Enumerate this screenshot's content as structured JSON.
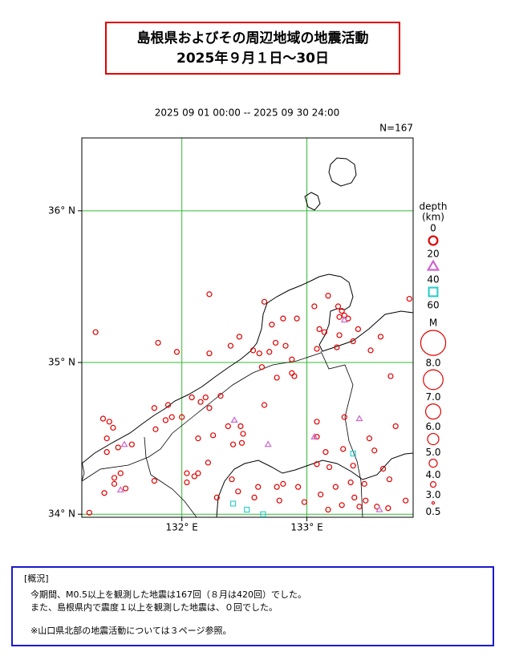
{
  "title": [
    "島根県およびその周辺地域の地震活動",
    "2025年９月１日～30日"
  ],
  "period": "2025 09 01 00:00 -- 2025 09 30 24:00",
  "count_label": "N=167",
  "map": {
    "xlim": [
      131.2,
      133.85
    ],
    "ylim": [
      33.98,
      36.48
    ],
    "xticks": [
      {
        "value": 132,
        "label": "132° E"
      },
      {
        "value": 133,
        "label": "133° E"
      }
    ],
    "yticks": [
      {
        "value": 34,
        "label": "34° N"
      },
      {
        "value": 35,
        "label": "35° N"
      },
      {
        "value": 36,
        "label": "36° N"
      }
    ],
    "grid_color": "#33bb33"
  },
  "legend": {
    "depth_title": [
      "depth",
      "(km)"
    ],
    "depth_ticks": [
      0,
      20,
      40,
      60
    ],
    "depth_colors": [
      "#e00000",
      "#cc66cc",
      "#33cccc"
    ],
    "magnitude_title": "M",
    "magnitude_ticks": [
      {
        "value": 8,
        "label": "8.0"
      },
      {
        "value": 7,
        "label": "7.0"
      },
      {
        "value": 6,
        "label": "6.0"
      },
      {
        "value": 5,
        "label": "5.0"
      },
      {
        "value": 4,
        "label": "4.0"
      },
      {
        "value": 3,
        "label": "3.0"
      },
      0.5
    ]
  },
  "events": [
    [
      131.31,
      35.2,
      10
    ],
    [
      132.22,
      35.45,
      10
    ],
    [
      131.81,
      35.13,
      10
    ],
    [
      131.96,
      35.07,
      10
    ],
    [
      132.22,
      35.06,
      10
    ],
    [
      132.39,
      35.11,
      10
    ],
    [
      132.46,
      35.17,
      10
    ],
    [
      132.66,
      35.4,
      10
    ],
    [
      132.72,
      35.25,
      10
    ],
    [
      132.81,
      35.29,
      10
    ],
    [
      132.92,
      35.29,
      10
    ],
    [
      133.06,
      35.37,
      10
    ],
    [
      133.17,
      35.44,
      10
    ],
    [
      133.25,
      35.37,
      10
    ],
    [
      133.28,
      35.34,
      10
    ],
    [
      133.3,
      35.31,
      10
    ],
    [
      133.33,
      35.29,
      10
    ],
    [
      133.26,
      35.3,
      10
    ],
    [
      133.1,
      35.22,
      10
    ],
    [
      133.14,
      35.2,
      10
    ],
    [
      133.26,
      35.18,
      10
    ],
    [
      133.41,
      35.22,
      10
    ],
    [
      133.37,
      35.14,
      10
    ],
    [
      133.51,
      35.08,
      10
    ],
    [
      133.08,
      35.09,
      10
    ],
    [
      133.24,
      35.1,
      10
    ],
    [
      132.57,
      35.08,
      10
    ],
    [
      132.62,
      35.06,
      10
    ],
    [
      132.7,
      35.07,
      10
    ],
    [
      132.83,
      35.11,
      10
    ],
    [
      132.75,
      35.13,
      10
    ],
    [
      132.88,
      35.02,
      10
    ],
    [
      132.88,
      34.93,
      10
    ],
    [
      132.9,
      34.91,
      10
    ],
    [
      132.76,
      34.9,
      10
    ],
    [
      132.64,
      34.97,
      10
    ],
    [
      133.67,
      34.91,
      10
    ],
    [
      132.19,
      34.77,
      10
    ],
    [
      132.08,
      34.77,
      10
    ],
    [
      132.15,
      34.74,
      10
    ],
    [
      132.31,
      34.78,
      10
    ],
    [
      132.22,
      34.7,
      10
    ],
    [
      132.37,
      34.58,
      10
    ],
    [
      132.47,
      34.58,
      10
    ],
    [
      132.49,
      34.53,
      10
    ],
    [
      132.48,
      34.47,
      10
    ],
    [
      132.41,
      34.46,
      10
    ],
    [
      132.66,
      34.72,
      10
    ],
    [
      131.87,
      34.62,
      10
    ],
    [
      131.79,
      34.56,
      10
    ],
    [
      131.37,
      34.63,
      10
    ],
    [
      131.42,
      34.61,
      10
    ],
    [
      131.4,
      34.5,
      10
    ],
    [
      131.45,
      34.57,
      10
    ],
    [
      131.4,
      34.41,
      10
    ],
    [
      131.49,
      34.44,
      10
    ],
    [
      131.6,
      34.46,
      10
    ],
    [
      131.78,
      34.7,
      10
    ],
    [
      131.89,
      34.72,
      10
    ],
    [
      131.92,
      34.64,
      10
    ],
    [
      132.0,
      34.64,
      10
    ],
    [
      132.13,
      34.5,
      10
    ],
    [
      132.25,
      34.52,
      10
    ],
    [
      132.21,
      34.34,
      10
    ],
    [
      132.13,
      34.27,
      10
    ],
    [
      132.04,
      34.27,
      10
    ],
    [
      132.1,
      34.25,
      10
    ],
    [
      132.04,
      34.21,
      10
    ],
    [
      131.78,
      34.22,
      10
    ],
    [
      131.46,
      34.24,
      10
    ],
    [
      131.51,
      34.27,
      10
    ],
    [
      131.46,
      34.2,
      10
    ],
    [
      131.55,
      34.17,
      10
    ],
    [
      131.38,
      34.14,
      10
    ],
    [
      131.26,
      34.01,
      10
    ],
    [
      132.28,
      34.11,
      10
    ],
    [
      132.4,
      34.23,
      10
    ],
    [
      132.45,
      34.15,
      10
    ],
    [
      132.58,
      34.11,
      10
    ],
    [
      132.61,
      34.18,
      10
    ],
    [
      132.76,
      34.18,
      10
    ],
    [
      132.78,
      34.09,
      10
    ],
    [
      132.93,
      34.18,
      10
    ],
    [
      132.98,
      34.08,
      10
    ],
    [
      133.11,
      34.13,
      10
    ],
    [
      133.17,
      34.03,
      10
    ],
    [
      133.28,
      34.06,
      10
    ],
    [
      133.42,
      34.05,
      10
    ],
    [
      133.47,
      34.09,
      10
    ],
    [
      133.56,
      34.05,
      10
    ],
    [
      133.65,
      34.04,
      10
    ],
    [
      133.08,
      34.61,
      10
    ],
    [
      133.08,
      34.51,
      10
    ],
    [
      133.15,
      34.41,
      10
    ],
    [
      133.18,
      34.31,
      10
    ],
    [
      133.29,
      34.43,
      10
    ],
    [
      133.3,
      34.64,
      10
    ],
    [
      133.37,
      34.32,
      10
    ],
    [
      133.35,
      34.21,
      10
    ],
    [
      133.46,
      34.2,
      10
    ],
    [
      133.61,
      34.3,
      10
    ],
    [
      133.66,
      34.23,
      10
    ],
    [
      133.71,
      34.58,
      10
    ],
    [
      133.5,
      34.5,
      10
    ],
    [
      133.54,
      34.42,
      10
    ],
    [
      133.79,
      34.09,
      10
    ],
    [
      133.82,
      35.42,
      10
    ],
    [
      133.59,
      35.17,
      10
    ],
    [
      132.81,
      34.2,
      10
    ],
    [
      133.08,
      34.33,
      10
    ],
    [
      133.23,
      34.18,
      10
    ],
    [
      133.38,
      34.11,
      10
    ],
    [
      132.42,
      34.62,
      30
    ],
    [
      131.54,
      34.46,
      30
    ],
    [
      132.69,
      34.46,
      30
    ],
    [
      133.06,
      34.51,
      30
    ],
    [
      133.42,
      34.63,
      30
    ],
    [
      131.51,
      34.16,
      30
    ],
    [
      133.58,
      34.03,
      30
    ],
    [
      133.3,
      35.28,
      30
    ],
    [
      133.37,
      34.4,
      50
    ],
    [
      132.52,
      34.03,
      50
    ],
    [
      132.41,
      34.07,
      50
    ],
    [
      132.65,
      34.0,
      50
    ]
  ],
  "summary": {
    "heading": "[概況]",
    "lines": [
      "今期間、M0.5以上を観測した地震は167回（８月は420回）でした。",
      "また、島根県内で震度１以上を観測した地震は、０回でした。",
      "※山口県北部の地震活動については３ページ参照。"
    ]
  }
}
